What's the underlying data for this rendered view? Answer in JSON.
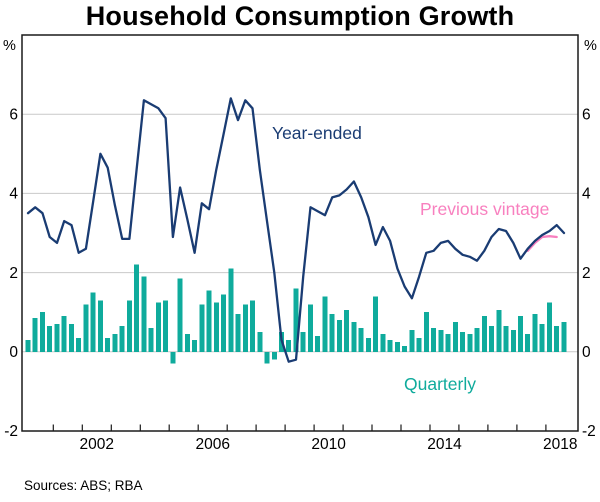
{
  "title": "Household Consumption Growth",
  "footer": {
    "sources": "Sources: ABS; RBA"
  },
  "axes": {
    "unit_left": "%",
    "unit_right": "%",
    "ylim": [
      -2,
      8
    ],
    "grid_values": [
      0,
      2,
      4,
      6
    ],
    "y_tick_values": [
      6,
      4,
      2,
      0,
      -2
    ],
    "y_tick_labels": [
      "6",
      "4",
      "2",
      "0",
      "-2"
    ],
    "x_tick_years": [
      2002,
      2006,
      2010,
      2014,
      2018
    ],
    "x_tick_labels": [
      "2002",
      "2006",
      "2010",
      "2014",
      "2018"
    ],
    "x_minor_tick_start_year": 2001,
    "x_minor_tick_end_year": 2018
  },
  "colors": {
    "year_ended": "#1a3c73",
    "quarterly": "#0fab9c",
    "previous_vintage": "#f880bf",
    "grid": "#c9c9c9",
    "frame": "#1a1a1a",
    "text": "#000000"
  },
  "annotations": [
    {
      "text": "Year-ended",
      "color_key": "year_ended"
    },
    {
      "text": "Previous vintage",
      "color_key": "previous_vintage"
    },
    {
      "text": "Quarterly",
      "color_key": "quarterly"
    }
  ],
  "chart_data": {
    "type": "bar+line",
    "frequency": "quarterly",
    "x_start": "2000Q1",
    "x_end": "2018Q3",
    "title": "Household Consumption Growth",
    "ylabel": "%",
    "ylim": [
      -2,
      8
    ],
    "grid": "horizontal",
    "legend_position": "inline-annotations",
    "series": [
      {
        "name": "Quarterly",
        "type": "bar",
        "color_key": "quarterly",
        "start_index": 0,
        "values": [
          0.3,
          0.85,
          1.0,
          0.65,
          0.7,
          0.9,
          0.7,
          0.35,
          1.2,
          1.5,
          1.3,
          0.35,
          0.45,
          0.65,
          1.3,
          2.2,
          1.9,
          0.6,
          1.25,
          1.3,
          -0.3,
          1.85,
          0.45,
          0.3,
          1.2,
          1.55,
          1.25,
          1.45,
          2.1,
          0.95,
          1.2,
          1.3,
          0.5,
          -0.3,
          -0.2,
          0.5,
          0.3,
          1.6,
          0.5,
          1.2,
          0.4,
          1.4,
          0.95,
          0.8,
          1.05,
          0.75,
          0.6,
          0.35,
          1.4,
          0.45,
          0.3,
          0.25,
          0.15,
          0.55,
          0.35,
          1.0,
          0.6,
          0.55,
          0.45,
          0.75,
          0.5,
          0.45,
          0.6,
          0.9,
          0.65,
          1.05,
          0.65,
          0.55,
          0.9,
          0.45,
          0.95,
          0.7,
          1.25,
          0.65,
          0.75
        ]
      },
      {
        "name": "Previous vintage",
        "type": "line",
        "color_key": "previous_vintage",
        "start_index": 69,
        "values": [
          2.55,
          2.75,
          2.9,
          2.92,
          2.9
        ]
      },
      {
        "name": "Year-ended",
        "type": "line",
        "color_key": "year_ended",
        "start_index": 0,
        "values": [
          3.5,
          3.65,
          3.5,
          2.9,
          2.75,
          3.3,
          3.2,
          2.5,
          2.6,
          3.8,
          5.0,
          4.65,
          3.7,
          2.85,
          2.85,
          4.6,
          6.35,
          6.25,
          6.15,
          5.9,
          2.9,
          4.15,
          3.35,
          2.5,
          3.75,
          3.6,
          4.6,
          5.5,
          6.4,
          5.85,
          6.35,
          6.15,
          4.6,
          3.3,
          2.0,
          0.3,
          -0.25,
          -0.2,
          1.9,
          3.65,
          3.55,
          3.45,
          3.9,
          3.95,
          4.1,
          4.3,
          3.9,
          3.4,
          2.7,
          3.15,
          2.8,
          2.1,
          1.65,
          1.35,
          1.9,
          2.5,
          2.55,
          2.75,
          2.8,
          2.6,
          2.45,
          2.4,
          2.3,
          2.55,
          2.9,
          3.1,
          3.05,
          2.75,
          2.35,
          2.6,
          2.8,
          2.95,
          3.05,
          3.2,
          3.0
        ]
      }
    ]
  }
}
